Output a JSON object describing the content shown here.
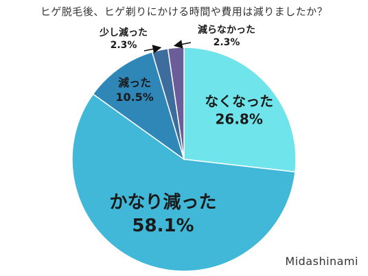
{
  "chart_data": {
    "type": "pie",
    "title": "ヒゲ脱毛後、ヒゲ剃りにかける時間や費用は減りましたか？",
    "slices": [
      {
        "label": "なくなった",
        "value": 26.8,
        "display": "26.8%",
        "color": "#6fe4ea"
      },
      {
        "label": "かなり減った",
        "value": 58.1,
        "display": "58.1%",
        "color": "#41b8d8"
      },
      {
        "label": "減った",
        "value": 10.5,
        "display": "10.5%",
        "color": "#2f87b8"
      },
      {
        "label": "少し減った",
        "value": 2.3,
        "display": "2.3%",
        "color": "#3d6d9c"
      },
      {
        "label": "減らなかった",
        "value": 2.3,
        "display": "2.3%",
        "color": "#6b5c9a"
      }
    ]
  },
  "watermark": "Midashinami"
}
